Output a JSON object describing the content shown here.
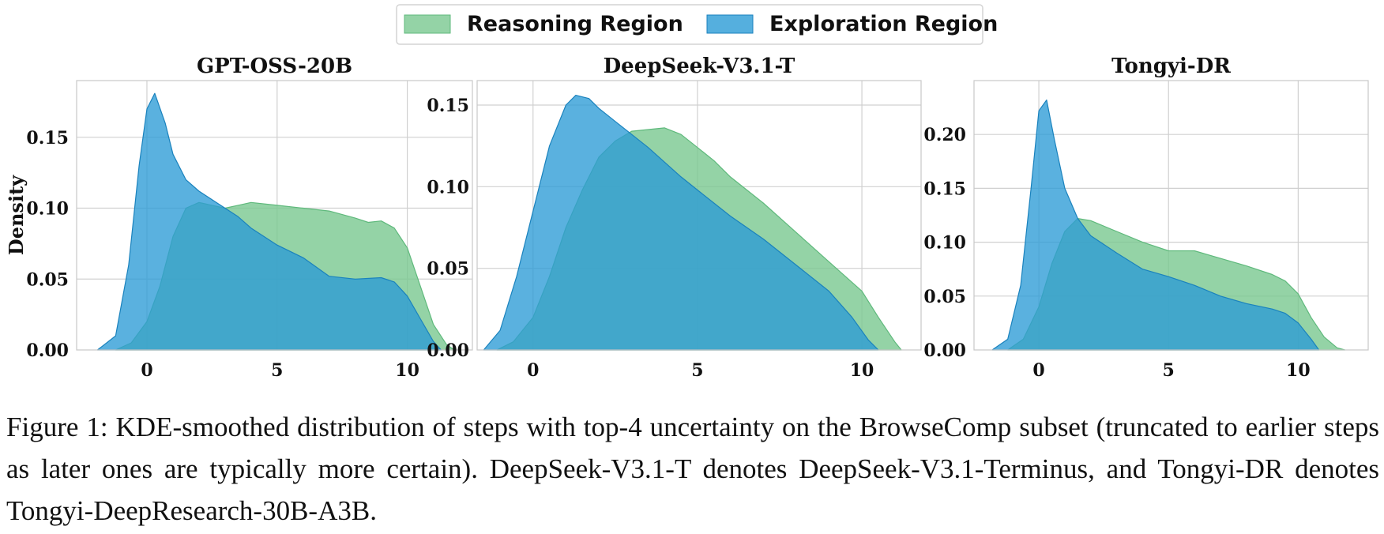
{
  "legend": {
    "reasoning_label": "Reasoning Region",
    "exploration_label": "Exploration Region",
    "reasoning_color": "#79c890",
    "exploration_color": "#2b9bd6",
    "placement": "top-center"
  },
  "caption": "Figure 1: KDE-smoothed distribution of steps with top-4 uncertainty on the BrowseComp subset (truncated to earlier steps as later ones are typically more certain). DeepSeek-V3.1-T denotes DeepSeek-V3.1-Terminus, and Tongyi-DR denotes Tongyi-DeepResearch-30B-A3B.",
  "chart_data": [
    {
      "type": "area",
      "title": "GPT-OSS-20B",
      "ylabel": "Density",
      "grid": true,
      "xlim": [
        -2.7,
        12.5
      ],
      "ylim": [
        0,
        0.19
      ],
      "xticks": [
        0,
        5,
        10
      ],
      "yticks": [
        0.0,
        0.05,
        0.1,
        0.15
      ],
      "ytick_labels": [
        "0.00",
        "0.05",
        "0.10",
        "0.15"
      ],
      "series": [
        {
          "name": "Reasoning Region",
          "x": [
            -1.2,
            -0.6,
            0,
            0.5,
            1,
            1.5,
            2,
            2.5,
            3,
            3.5,
            4,
            5,
            6,
            7,
            8,
            8.5,
            9,
            9.5,
            10,
            10.5,
            11,
            11.5,
            11.8
          ],
          "y": [
            0.0,
            0.005,
            0.02,
            0.045,
            0.08,
            0.1,
            0.104,
            0.102,
            0.1,
            0.102,
            0.104,
            0.102,
            0.1,
            0.098,
            0.093,
            0.09,
            0.091,
            0.086,
            0.072,
            0.045,
            0.018,
            0.004,
            0.0
          ]
        },
        {
          "name": "Exploration Region",
          "x": [
            -1.9,
            -1.2,
            -0.7,
            -0.3,
            0,
            0.3,
            0.7,
            1,
            1.5,
            2,
            2.5,
            3,
            3.5,
            4,
            5,
            6,
            7,
            8,
            9,
            9.5,
            10,
            10.5,
            11,
            11.3
          ],
          "y": [
            0.0,
            0.01,
            0.06,
            0.13,
            0.17,
            0.181,
            0.16,
            0.138,
            0.12,
            0.112,
            0.106,
            0.1,
            0.094,
            0.086,
            0.074,
            0.065,
            0.052,
            0.05,
            0.051,
            0.048,
            0.038,
            0.022,
            0.006,
            0.0
          ]
        }
      ]
    },
    {
      "type": "area",
      "title": "DeepSeek-V3.1-T",
      "ylabel": "",
      "grid": true,
      "xlim": [
        -1.7,
        11.8
      ],
      "ylim": [
        0,
        0.165
      ],
      "xticks": [
        0,
        5,
        10
      ],
      "yticks": [
        0.0,
        0.05,
        0.1,
        0.15
      ],
      "ytick_labels": [
        "0.00",
        "0.05",
        "0.10",
        "0.15"
      ],
      "series": [
        {
          "name": "Reasoning Region",
          "x": [
            -1.1,
            -0.6,
            0,
            0.5,
            1,
            1.5,
            2,
            2.5,
            3,
            3.5,
            4,
            4.5,
            5,
            5.5,
            6,
            7,
            8,
            9,
            10,
            10.5,
            11,
            11.2
          ],
          "y": [
            0.0,
            0.005,
            0.02,
            0.045,
            0.075,
            0.098,
            0.118,
            0.128,
            0.134,
            0.135,
            0.136,
            0.132,
            0.124,
            0.116,
            0.106,
            0.09,
            0.072,
            0.054,
            0.036,
            0.02,
            0.005,
            0.0
          ]
        },
        {
          "name": "Exploration Region",
          "x": [
            -1.5,
            -1.0,
            -0.5,
            0,
            0.5,
            1,
            1.3,
            1.7,
            2,
            2.5,
            3,
            3.5,
            4,
            4.5,
            5,
            6,
            7,
            8,
            9,
            9.7,
            10.2,
            10.5
          ],
          "y": [
            0.0,
            0.012,
            0.045,
            0.085,
            0.125,
            0.15,
            0.156,
            0.154,
            0.148,
            0.14,
            0.132,
            0.124,
            0.115,
            0.106,
            0.098,
            0.082,
            0.068,
            0.052,
            0.036,
            0.02,
            0.006,
            0.0
          ]
        }
      ]
    },
    {
      "type": "area",
      "title": "Tongyi-DR",
      "ylabel": "",
      "grid": true,
      "xlim": [
        -2.5,
        12.7
      ],
      "ylim": [
        0,
        0.25
      ],
      "xticks": [
        0,
        5,
        10
      ],
      "yticks": [
        0.0,
        0.05,
        0.1,
        0.15,
        0.2
      ],
      "ytick_labels": [
        "0.00",
        "0.05",
        "0.10",
        "0.15",
        "0.20"
      ],
      "series": [
        {
          "name": "Reasoning Region",
          "x": [
            -1.2,
            -0.6,
            0,
            0.5,
            1,
            1.5,
            2,
            3,
            4,
            5,
            6,
            7,
            8,
            9,
            9.5,
            10,
            10.5,
            11,
            11.5,
            11.8
          ],
          "y": [
            0.0,
            0.01,
            0.04,
            0.08,
            0.11,
            0.122,
            0.12,
            0.11,
            0.1,
            0.092,
            0.092,
            0.085,
            0.078,
            0.07,
            0.064,
            0.052,
            0.03,
            0.012,
            0.002,
            0.0
          ]
        },
        {
          "name": "Exploration Region",
          "x": [
            -1.8,
            -1.2,
            -0.7,
            -0.3,
            0,
            0.3,
            0.6,
            1,
            1.5,
            2,
            3,
            4,
            5,
            6,
            7,
            8,
            9,
            9.5,
            10,
            10.5,
            10.8
          ],
          "y": [
            0.0,
            0.01,
            0.06,
            0.15,
            0.222,
            0.232,
            0.195,
            0.15,
            0.122,
            0.106,
            0.09,
            0.075,
            0.068,
            0.06,
            0.05,
            0.043,
            0.038,
            0.034,
            0.025,
            0.01,
            0.0
          ]
        }
      ]
    }
  ]
}
